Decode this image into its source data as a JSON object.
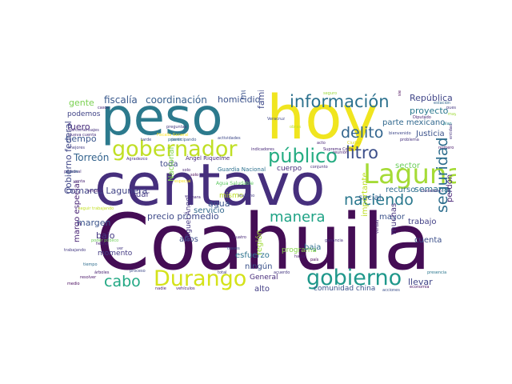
{
  "cloud": {
    "words": [
      {
        "text": "Coahuila",
        "color": "#440d55",
        "vertical": false
      },
      {
        "text": "centavo",
        "color": "#462f7d",
        "vertical": false
      },
      {
        "text": "peso",
        "color": "#2c7a8d",
        "vertical": false
      },
      {
        "text": "hoy",
        "color": "#f0e51f",
        "vertical": false
      },
      {
        "text": "Laguna",
        "color": "#a5db36",
        "vertical": false
      },
      {
        "text": "gobernador",
        "color": "#c0df25",
        "vertical": false
      },
      {
        "text": "Durango",
        "color": "#d4e21a",
        "vertical": false
      },
      {
        "text": "gobierno",
        "color": "#1f988b",
        "vertical": false
      },
      {
        "text": "información",
        "color": "#2c718e",
        "vertical": false
      },
      {
        "text": "público",
        "color": "#25ac82",
        "vertical": false
      },
      {
        "text": "naciendo",
        "color": "#2a788e",
        "vertical": false
      },
      {
        "text": "manera",
        "color": "#20a386",
        "vertical": false
      },
      {
        "text": "delito",
        "color": "#32658e",
        "vertical": false
      },
      {
        "text": "litro",
        "color": "#3c4f8a",
        "vertical": false
      },
      {
        "text": "cabo",
        "color": "#22a884",
        "vertical": false
      },
      {
        "text": "seguridad",
        "color": "#2e6e8e",
        "vertical": true
      },
      {
        "text": "fiscalía",
        "color": "#38588c",
        "vertical": false
      },
      {
        "text": "coordinación",
        "color": "#355f8d",
        "vertical": false
      },
      {
        "text": "homicidio",
        "color": "#3b528b",
        "vertical": false
      },
      {
        "text": "República",
        "color": "#404688",
        "vertical": false
      },
      {
        "text": "proyecto",
        "color": "#2a788e",
        "vertical": false
      },
      {
        "text": "gente",
        "color": "#7ad151",
        "vertical": false
      },
      {
        "text": "podemos",
        "color": "#414487",
        "vertical": false
      },
      {
        "text": "fuero",
        "color": "#472d7b",
        "vertical": false
      },
      {
        "text": "tiempo",
        "color": "#39568c",
        "vertical": false
      },
      {
        "text": "Torreón",
        "color": "#33638d",
        "vertical": false
      },
      {
        "text": "Comarca Lagunera",
        "color": "#414487",
        "vertical": false
      },
      {
        "text": "precio promedio",
        "color": "#3e4a89",
        "vertical": false
      },
      {
        "text": "margen",
        "color": "#3a538b",
        "vertical": false
      },
      {
        "text": "bajo",
        "color": "#443983",
        "vertical": false
      },
      {
        "text": "gobierno federal",
        "color": "#3f4788",
        "vertical": true
      },
      {
        "text": "margo especial",
        "color": "#482374",
        "vertical": true
      },
      {
        "text": "municipio",
        "color": "#3b528b",
        "vertical": true
      },
      {
        "text": "familias",
        "color": "#3e4989",
        "vertical": true
      },
      {
        "text": "parte mexicano",
        "color": "#31688e",
        "vertical": false
      },
      {
        "text": "Justicia",
        "color": "#3b528b",
        "vertical": false
      },
      {
        "text": "sector",
        "color": "#6ccd5a",
        "vertical": false
      },
      {
        "text": "semana",
        "color": "#2c728e",
        "vertical": false
      },
      {
        "text": "recurso",
        "color": "#2e6d8e",
        "vertical": false
      },
      {
        "text": "social",
        "color": "#365d8d",
        "vertical": false
      },
      {
        "text": "mayor",
        "color": "#3b528b",
        "vertical": false
      },
      {
        "text": "trabajo",
        "color": "#424086",
        "vertical": false
      },
      {
        "text": "muchas",
        "color": "#46327e",
        "vertical": true
      },
      {
        "text": "cuenta",
        "color": "#3c4f8a",
        "vertical": false
      },
      {
        "text": "llevar",
        "color": "#404588",
        "vertical": false
      },
      {
        "text": "importante",
        "color": "#bddf26",
        "vertical": true
      },
      {
        "text": "perdón",
        "color": "#482576",
        "vertical": true
      },
      {
        "text": "comunidad china",
        "color": "#3b528b",
        "vertical": false
      },
      {
        "text": "agua",
        "color": "#3a548c",
        "vertical": false
      },
      {
        "text": "servicio",
        "color": "#31688e",
        "vertical": false
      },
      {
        "text": "esfuerzo",
        "color": "#2c728e",
        "vertical": false
      },
      {
        "text": "programa",
        "color": "#86d549",
        "vertical": false
      },
      {
        "text": "ningún",
        "color": "#3b528b",
        "vertical": false
      },
      {
        "text": "región",
        "color": "#a0da39",
        "vertical": true
      },
      {
        "text": "baja",
        "color": "#2e6f8e",
        "vertical": false
      },
      {
        "text": "alto",
        "color": "#433e85",
        "vertical": false
      },
      {
        "text": "General",
        "color": "#472c7a",
        "vertical": false
      },
      {
        "text": "años",
        "color": "#3d4e8a",
        "vertical": false
      },
      {
        "text": "momento",
        "color": "#443a83",
        "vertical": false
      },
      {
        "text": "toda",
        "color": "#3e4a89",
        "vertical": false
      },
      {
        "text": "dar",
        "color": "#443983",
        "vertical": false
      },
      {
        "text": "Nacional",
        "color": "#7fd34e",
        "vertical": true
      },
      {
        "text": "Ángel Riquelme",
        "color": "#472a7a",
        "vertical": false
      },
      {
        "text": "Guardia Nacional",
        "color": "#2c718e",
        "vertical": false
      },
      {
        "text": "Miguel Ángel",
        "color": "#453882",
        "vertical": true
      },
      {
        "text": "cuerpo",
        "color": "#472f7d",
        "vertical": false
      },
      {
        "text": "mismo",
        "color": "#bddf26",
        "vertical": false
      },
      {
        "text": "indicadores",
        "color": "#482878",
        "vertical": false
      },
      {
        "text": "Suprema Corte",
        "color": "#482475",
        "vertical": false
      },
      {
        "text": "conjunto",
        "color": "#472d7b",
        "vertical": false
      },
      {
        "text": "problema",
        "color": "#46327e",
        "vertical": false
      },
      {
        "text": "trabajando",
        "color": "#443983",
        "vertical": false
      },
      {
        "text": "Agua Saludable",
        "color": "#5ec962",
        "vertical": false
      },
      {
        "text": "casos",
        "color": "#482677",
        "vertical": false
      },
      {
        "text": "empleo",
        "color": "#481f70",
        "vertical": false
      },
      {
        "text": "árboles",
        "color": "#482071",
        "vertical": false
      },
      {
        "text": "ciudadano",
        "color": "#46337f",
        "vertical": false
      },
      {
        "text": "Diputado",
        "color": "#482374",
        "vertical": false
      },
      {
        "text": "acuerdo",
        "color": "#453781",
        "vertical": false
      },
      {
        "text": "hacia",
        "color": "#481c6e",
        "vertical": false
      },
      {
        "text": "total",
        "color": "#44397e",
        "vertical": false
      },
      {
        "text": "cuatro",
        "color": "#482878",
        "vertical": false
      },
      {
        "text": "ganancia",
        "color": "#46307e",
        "vertical": false
      },
      {
        "text": "acciones",
        "color": "#3c4f8a",
        "vertical": false
      },
      {
        "text": "economía",
        "color": "#481467",
        "vertical": false
      },
      {
        "text": "presencia",
        "color": "#2a768e",
        "vertical": false
      },
      {
        "text": "nadie",
        "color": "#481b6d",
        "vertical": false
      },
      {
        "text": "vehículos",
        "color": "#482071",
        "vertical": false
      },
      {
        "text": "preguntas",
        "color": "#44397e",
        "vertical": false
      },
      {
        "text": "estación",
        "color": "#31678e",
        "vertical": false
      },
      {
        "text": "mayo",
        "color": "#9fda3a",
        "vertical": false
      },
      {
        "text": "actividades",
        "color": "#3e4989",
        "vertical": false
      },
      {
        "text": "Ciudad",
        "color": "#ddd91c",
        "vertical": false
      },
      {
        "text": "acto",
        "color": "#482677",
        "vertical": false
      },
      {
        "text": "nueva cuenta",
        "color": "#472e7c",
        "vertical": false
      },
      {
        "text": "narcomensajes",
        "color": "#46307e",
        "vertical": false
      },
      {
        "text": "Fiscalía General",
        "color": "#fde725",
        "vertical": false
      },
      {
        "text": "tarde",
        "color": "#404688",
        "vertical": false
      },
      {
        "text": "especial",
        "color": "#f6e620",
        "vertical": false
      },
      {
        "text": "puede",
        "color": "#2e6e8e",
        "vertical": false
      },
      {
        "text": "Agradezco",
        "color": "#463480",
        "vertical": false
      },
      {
        "text": "personal",
        "color": "#472e7c",
        "vertical": false
      },
      {
        "text": "mejores",
        "color": "#433d84",
        "vertical": false
      },
      {
        "text": "solo",
        "color": "#482576",
        "vertical": false
      },
      {
        "text": "ayudar",
        "color": "#482878",
        "vertical": false
      },
      {
        "text": "través",
        "color": "#3b528b",
        "vertical": false
      },
      {
        "text": "país",
        "color": "#450457",
        "vertical": false
      },
      {
        "text": "reunión",
        "color": "#482173",
        "vertical": false
      },
      {
        "text": "medio",
        "color": "#46085c",
        "vertical": false
      },
      {
        "text": "resolver",
        "color": "#481467",
        "vertical": false
      },
      {
        "text": "proceso",
        "color": "#3e4a89",
        "vertical": false
      },
      {
        "text": "participando",
        "color": "#38598c",
        "vertical": false
      },
      {
        "text": "primer",
        "color": "#2d708e",
        "vertical": false
      },
      {
        "text": "bienvenido",
        "color": "#3f4889",
        "vertical": false
      },
      {
        "text": "entidad",
        "color": "#46337f",
        "vertical": true
      },
      {
        "text": "siempre",
        "color": "#440154",
        "vertical": true
      },
      {
        "text": "seguro",
        "color": "#9bd93c",
        "vertical": false
      },
      {
        "text": "verdad",
        "color": "#472a7a",
        "vertical": true
      },
      {
        "text": "pues",
        "color": "#453882",
        "vertical": false
      },
      {
        "text": "venta",
        "color": "#482374",
        "vertical": false
      },
      {
        "text": "hecho",
        "color": "#482475",
        "vertical": false
      },
      {
        "text": "poder público",
        "color": "#6ece58",
        "vertical": false
      },
      {
        "text": "tiempo",
        "color": "#2e6d8e",
        "vertical": false
      },
      {
        "text": "seguir trabajando",
        "color": "#c2df23",
        "vertical": false
      },
      {
        "text": "ver",
        "color": "#453781",
        "vertical": false
      },
      {
        "text": "plan",
        "color": "#26828e",
        "vertical": false
      },
      {
        "text": "número",
        "color": "#481769",
        "vertical": false
      },
      {
        "text": "obras",
        "color": "#bddf26",
        "vertical": false
      },
      {
        "text": "cámara",
        "color": "#482979",
        "vertical": false
      },
      {
        "text": "invierno",
        "color": "#433d84",
        "vertical": false
      },
      {
        "text": "solo",
        "color": "#440154",
        "vertical": false
      },
      {
        "text": "Veracruz",
        "color": "#3f4788",
        "vertical": false
      }
    ]
  }
}
